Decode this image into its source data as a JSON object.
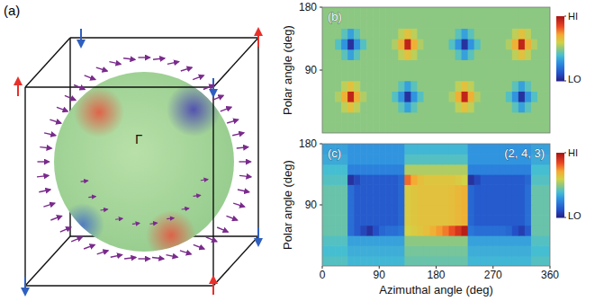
{
  "chart_data": [
    {
      "type": "diagram",
      "panel_label": "(a)",
      "center_label": "Γ"
    },
    {
      "type": "heatmap",
      "panel_label": "(b)",
      "ylabel": "Polar angle (deg)",
      "xlim": [
        0,
        360
      ],
      "ylim": [
        0,
        180
      ],
      "yticks": [
        90,
        180
      ],
      "tick_labels": "y",
      "x_edges": [
        0,
        10,
        20,
        30,
        40,
        50,
        60,
        70,
        80,
        90,
        100,
        110,
        120,
        130,
        140,
        150,
        160,
        170,
        180,
        190,
        200,
        210,
        220,
        230,
        240,
        250,
        260,
        270,
        280,
        290,
        300,
        310,
        320,
        330,
        340,
        350,
        360
      ],
      "y_edges": [
        0,
        15,
        30,
        45,
        60,
        75,
        90,
        105,
        120,
        135,
        150,
        165,
        180
      ],
      "cells": [
        [
          0.5,
          0.5,
          0.5,
          0.5,
          0.5,
          0.5,
          0.5,
          0.5,
          0.5,
          0.5,
          0.5,
          0.5,
          0.5,
          0.5,
          0.5,
          0.5,
          0.5,
          0.5,
          0.5,
          0.5,
          0.5,
          0.5,
          0.5,
          0.5,
          0.5,
          0.5,
          0.5,
          0.5,
          0.5,
          0.5,
          0.5,
          0.5,
          0.5,
          0.5,
          0.5,
          0.5
        ],
        [
          0.5,
          0.5,
          0.5,
          0.5,
          0.5,
          0.5,
          0.5,
          0.5,
          0.5,
          0.5,
          0.5,
          0.5,
          0.5,
          0.5,
          0.5,
          0.5,
          0.5,
          0.5,
          0.5,
          0.5,
          0.5,
          0.5,
          0.5,
          0.5,
          0.5,
          0.5,
          0.5,
          0.5,
          0.5,
          0.5,
          0.5,
          0.5,
          0.5,
          0.5,
          0.5,
          0.5
        ],
        [
          0.5,
          0.5,
          0.5,
          0.57,
          0.65,
          0.57,
          0.5,
          0.5,
          0.5,
          0.5,
          0.5,
          0.5,
          0.43,
          0.33,
          0.43,
          0.5,
          0.5,
          0.5,
          0.5,
          0.5,
          0.5,
          0.57,
          0.65,
          0.57,
          0.5,
          0.5,
          0.5,
          0.5,
          0.5,
          0.5,
          0.43,
          0.33,
          0.43,
          0.5,
          0.5,
          0.5
        ],
        [
          0.5,
          0.5,
          0.55,
          0.7,
          0.95,
          0.7,
          0.55,
          0.5,
          0.5,
          0.5,
          0.5,
          0.42,
          0.3,
          0.05,
          0.3,
          0.42,
          0.5,
          0.5,
          0.5,
          0.5,
          0.55,
          0.7,
          0.95,
          0.7,
          0.55,
          0.5,
          0.5,
          0.5,
          0.5,
          0.42,
          0.3,
          0.05,
          0.3,
          0.42,
          0.5,
          0.5
        ],
        [
          0.5,
          0.5,
          0.5,
          0.57,
          0.65,
          0.57,
          0.5,
          0.5,
          0.5,
          0.5,
          0.5,
          0.5,
          0.43,
          0.33,
          0.43,
          0.5,
          0.5,
          0.5,
          0.5,
          0.5,
          0.5,
          0.57,
          0.65,
          0.57,
          0.5,
          0.5,
          0.5,
          0.5,
          0.5,
          0.5,
          0.43,
          0.33,
          0.43,
          0.5,
          0.5,
          0.5
        ],
        [
          0.5,
          0.5,
          0.5,
          0.5,
          0.5,
          0.5,
          0.5,
          0.5,
          0.5,
          0.5,
          0.5,
          0.5,
          0.5,
          0.5,
          0.5,
          0.5,
          0.5,
          0.5,
          0.5,
          0.5,
          0.5,
          0.5,
          0.5,
          0.5,
          0.5,
          0.5,
          0.5,
          0.5,
          0.5,
          0.5,
          0.5,
          0.5,
          0.5,
          0.5,
          0.5,
          0.5
        ],
        [
          0.5,
          0.5,
          0.5,
          0.5,
          0.5,
          0.5,
          0.5,
          0.5,
          0.5,
          0.5,
          0.5,
          0.5,
          0.5,
          0.5,
          0.5,
          0.5,
          0.5,
          0.5,
          0.5,
          0.5,
          0.5,
          0.5,
          0.5,
          0.5,
          0.5,
          0.5,
          0.5,
          0.5,
          0.5,
          0.5,
          0.5,
          0.5,
          0.5,
          0.5,
          0.5,
          0.5
        ],
        [
          0.5,
          0.5,
          0.5,
          0.43,
          0.33,
          0.43,
          0.5,
          0.5,
          0.5,
          0.5,
          0.5,
          0.5,
          0.57,
          0.65,
          0.57,
          0.5,
          0.5,
          0.5,
          0.5,
          0.5,
          0.5,
          0.43,
          0.33,
          0.43,
          0.5,
          0.5,
          0.5,
          0.5,
          0.5,
          0.5,
          0.57,
          0.65,
          0.57,
          0.5,
          0.5,
          0.5
        ],
        [
          0.5,
          0.5,
          0.42,
          0.3,
          0.05,
          0.3,
          0.42,
          0.5,
          0.5,
          0.5,
          0.5,
          0.55,
          0.7,
          0.95,
          0.7,
          0.55,
          0.5,
          0.5,
          0.5,
          0.5,
          0.42,
          0.3,
          0.05,
          0.3,
          0.42,
          0.5,
          0.5,
          0.5,
          0.5,
          0.55,
          0.7,
          0.95,
          0.7,
          0.55,
          0.5,
          0.5
        ],
        [
          0.5,
          0.5,
          0.5,
          0.43,
          0.33,
          0.43,
          0.5,
          0.5,
          0.5,
          0.5,
          0.5,
          0.5,
          0.57,
          0.65,
          0.57,
          0.5,
          0.5,
          0.5,
          0.5,
          0.5,
          0.5,
          0.43,
          0.33,
          0.43,
          0.5,
          0.5,
          0.5,
          0.5,
          0.5,
          0.5,
          0.57,
          0.65,
          0.57,
          0.5,
          0.5,
          0.5
        ],
        [
          0.5,
          0.5,
          0.5,
          0.5,
          0.5,
          0.5,
          0.5,
          0.5,
          0.5,
          0.5,
          0.5,
          0.5,
          0.5,
          0.5,
          0.5,
          0.5,
          0.5,
          0.5,
          0.5,
          0.5,
          0.5,
          0.5,
          0.5,
          0.5,
          0.5,
          0.5,
          0.5,
          0.5,
          0.5,
          0.5,
          0.5,
          0.5,
          0.5,
          0.5,
          0.5,
          0.5
        ],
        [
          0.5,
          0.5,
          0.5,
          0.5,
          0.5,
          0.5,
          0.5,
          0.5,
          0.5,
          0.5,
          0.5,
          0.5,
          0.5,
          0.5,
          0.5,
          0.5,
          0.5,
          0.5,
          0.5,
          0.5,
          0.5,
          0.5,
          0.5,
          0.5,
          0.5,
          0.5,
          0.5,
          0.5,
          0.5,
          0.5,
          0.5,
          0.5,
          0.5,
          0.5,
          0.5,
          0.5
        ]
      ],
      "colorbar_range": [
        0,
        1
      ],
      "colorbar_ticks": [
        {
          "value": 0,
          "label": "LO"
        },
        {
          "value": 1,
          "label": "HI"
        }
      ]
    },
    {
      "type": "heatmap",
      "panel_label": "(c)",
      "annotation": "(2, 4, 3)",
      "xlabel": "Azimuthal angle (deg)",
      "ylabel": "Polar angle (deg)",
      "xlim": [
        0,
        360
      ],
      "ylim": [
        0,
        180
      ],
      "xticks": [
        0,
        90,
        180,
        270,
        360
      ],
      "yticks": [
        90,
        180
      ],
      "x_edges": [
        0,
        10,
        20,
        30,
        40,
        50,
        60,
        70,
        80,
        90,
        100,
        110,
        120,
        130,
        140,
        150,
        160,
        170,
        180,
        190,
        200,
        210,
        220,
        230,
        240,
        250,
        260,
        270,
        280,
        290,
        300,
        310,
        320,
        330,
        340,
        350,
        360
      ],
      "y_edges": [
        0,
        15,
        30,
        45,
        60,
        75,
        90,
        105,
        120,
        135,
        150,
        165,
        180
      ],
      "cells": [
        [
          0.42,
          0.42,
          0.42,
          0.42,
          0.38,
          0.38,
          0.38,
          0.38,
          0.38,
          0.38,
          0.38,
          0.38,
          0.38,
          0.45,
          0.45,
          0.45,
          0.45,
          0.45,
          0.45,
          0.45,
          0.45,
          0.45,
          0.45,
          0.38,
          0.38,
          0.38,
          0.38,
          0.38,
          0.38,
          0.38,
          0.38,
          0.38,
          0.38,
          0.42,
          0.42,
          0.42
        ],
        [
          0.4,
          0.4,
          0.4,
          0.4,
          0.36,
          0.36,
          0.36,
          0.36,
          0.36,
          0.36,
          0.36,
          0.36,
          0.36,
          0.47,
          0.47,
          0.47,
          0.47,
          0.47,
          0.47,
          0.47,
          0.47,
          0.47,
          0.47,
          0.36,
          0.36,
          0.36,
          0.36,
          0.36,
          0.36,
          0.36,
          0.36,
          0.36,
          0.36,
          0.4,
          0.4,
          0.4
        ],
        [
          0.42,
          0.42,
          0.42,
          0.42,
          0.33,
          0.33,
          0.33,
          0.33,
          0.33,
          0.33,
          0.33,
          0.33,
          0.33,
          0.5,
          0.5,
          0.5,
          0.5,
          0.5,
          0.5,
          0.5,
          0.5,
          0.5,
          0.5,
          0.33,
          0.33,
          0.33,
          0.33,
          0.33,
          0.33,
          0.33,
          0.33,
          0.33,
          0.33,
          0.42,
          0.42,
          0.42
        ],
        [
          0.45,
          0.45,
          0.45,
          0.45,
          0.2,
          0.15,
          0.1,
          0.05,
          0.12,
          0.18,
          0.2,
          0.2,
          0.22,
          0.6,
          0.62,
          0.64,
          0.66,
          0.7,
          0.74,
          0.78,
          0.84,
          0.9,
          0.97,
          0.22,
          0.2,
          0.2,
          0.2,
          0.2,
          0.2,
          0.18,
          0.12,
          0.08,
          0.15,
          0.45,
          0.45,
          0.45
        ],
        [
          0.45,
          0.45,
          0.45,
          0.45,
          0.2,
          0.15,
          0.15,
          0.15,
          0.15,
          0.15,
          0.15,
          0.15,
          0.18,
          0.62,
          0.64,
          0.65,
          0.65,
          0.65,
          0.65,
          0.65,
          0.66,
          0.68,
          0.7,
          0.18,
          0.15,
          0.15,
          0.15,
          0.15,
          0.15,
          0.15,
          0.15,
          0.15,
          0.2,
          0.45,
          0.45,
          0.45
        ],
        [
          0.45,
          0.45,
          0.45,
          0.45,
          0.2,
          0.15,
          0.15,
          0.15,
          0.15,
          0.15,
          0.15,
          0.15,
          0.18,
          0.62,
          0.64,
          0.65,
          0.65,
          0.65,
          0.65,
          0.65,
          0.66,
          0.68,
          0.7,
          0.18,
          0.15,
          0.15,
          0.15,
          0.15,
          0.15,
          0.15,
          0.15,
          0.15,
          0.2,
          0.45,
          0.45,
          0.45
        ],
        [
          0.45,
          0.45,
          0.45,
          0.45,
          0.2,
          0.15,
          0.15,
          0.15,
          0.15,
          0.15,
          0.15,
          0.15,
          0.18,
          0.62,
          0.64,
          0.65,
          0.65,
          0.65,
          0.65,
          0.65,
          0.66,
          0.68,
          0.7,
          0.18,
          0.15,
          0.15,
          0.15,
          0.15,
          0.15,
          0.15,
          0.15,
          0.15,
          0.2,
          0.45,
          0.45,
          0.45
        ],
        [
          0.45,
          0.45,
          0.45,
          0.45,
          0.2,
          0.15,
          0.15,
          0.15,
          0.15,
          0.15,
          0.15,
          0.15,
          0.18,
          0.62,
          0.64,
          0.65,
          0.65,
          0.65,
          0.65,
          0.65,
          0.66,
          0.68,
          0.7,
          0.18,
          0.15,
          0.15,
          0.15,
          0.15,
          0.15,
          0.15,
          0.15,
          0.15,
          0.2,
          0.45,
          0.45,
          0.45
        ],
        [
          0.42,
          0.42,
          0.42,
          0.42,
          0.05,
          0.1,
          0.15,
          0.15,
          0.15,
          0.15,
          0.15,
          0.15,
          0.18,
          0.8,
          0.72,
          0.66,
          0.64,
          0.64,
          0.64,
          0.64,
          0.64,
          0.62,
          0.6,
          0.05,
          0.1,
          0.15,
          0.15,
          0.15,
          0.15,
          0.15,
          0.15,
          0.15,
          0.18,
          0.42,
          0.42,
          0.42
        ],
        [
          0.4,
          0.4,
          0.4,
          0.4,
          0.25,
          0.25,
          0.25,
          0.25,
          0.25,
          0.25,
          0.25,
          0.25,
          0.25,
          0.55,
          0.55,
          0.55,
          0.55,
          0.55,
          0.55,
          0.55,
          0.55,
          0.55,
          0.55,
          0.25,
          0.25,
          0.25,
          0.25,
          0.25,
          0.25,
          0.25,
          0.25,
          0.25,
          0.25,
          0.4,
          0.4,
          0.4
        ],
        [
          0.35,
          0.35,
          0.35,
          0.35,
          0.3,
          0.3,
          0.3,
          0.3,
          0.3,
          0.3,
          0.3,
          0.3,
          0.3,
          0.42,
          0.42,
          0.42,
          0.42,
          0.42,
          0.42,
          0.42,
          0.42,
          0.42,
          0.42,
          0.3,
          0.3,
          0.3,
          0.3,
          0.3,
          0.3,
          0.3,
          0.3,
          0.3,
          0.3,
          0.35,
          0.35,
          0.35
        ],
        [
          0.33,
          0.33,
          0.33,
          0.33,
          0.3,
          0.3,
          0.3,
          0.3,
          0.3,
          0.3,
          0.3,
          0.3,
          0.3,
          0.38,
          0.38,
          0.38,
          0.38,
          0.38,
          0.38,
          0.38,
          0.38,
          0.38,
          0.38,
          0.3,
          0.3,
          0.3,
          0.3,
          0.3,
          0.3,
          0.3,
          0.3,
          0.3,
          0.3,
          0.33,
          0.33,
          0.33
        ]
      ],
      "colorbar_range": [
        0,
        1
      ],
      "colorbar_ticks": [
        {
          "value": 0,
          "label": "LO"
        },
        {
          "value": 1,
          "label": "HI"
        }
      ]
    }
  ]
}
